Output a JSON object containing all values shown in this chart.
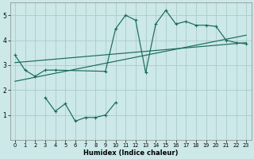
{
  "background_color": "#cce8e8",
  "grid_color": "#aacccc",
  "line_color": "#1a6b5a",
  "xlabel": "Humidex (Indice chaleur)",
  "xlim": [
    -0.5,
    23.5
  ],
  "ylim": [
    0,
    5.5
  ],
  "xticks": [
    0,
    1,
    2,
    3,
    4,
    5,
    6,
    7,
    8,
    9,
    10,
    11,
    12,
    13,
    14,
    15,
    16,
    17,
    18,
    19,
    20,
    21,
    22,
    23
  ],
  "yticks": [
    1,
    2,
    3,
    4,
    5
  ],
  "series1_x": [
    0,
    1,
    2,
    3,
    4,
    9,
    10,
    11,
    12,
    13,
    14,
    15,
    16,
    17,
    18,
    19,
    20,
    21,
    22,
    23
  ],
  "series1_y": [
    3.4,
    2.8,
    2.55,
    2.8,
    2.8,
    2.75,
    4.45,
    5.0,
    4.8,
    2.7,
    4.65,
    5.2,
    4.65,
    4.75,
    4.6,
    4.6,
    4.55,
    4.0,
    3.9,
    3.85
  ],
  "series2_x": [
    3,
    4,
    5,
    6,
    7,
    8,
    9,
    10
  ],
  "series2_y": [
    1.7,
    1.15,
    1.45,
    0.75,
    0.9,
    0.9,
    1.0,
    1.5
  ],
  "line1_x": [
    0,
    23
  ],
  "line1_y": [
    2.35,
    4.2
  ],
  "line2_x": [
    0,
    23
  ],
  "line2_y": [
    3.1,
    3.9
  ]
}
